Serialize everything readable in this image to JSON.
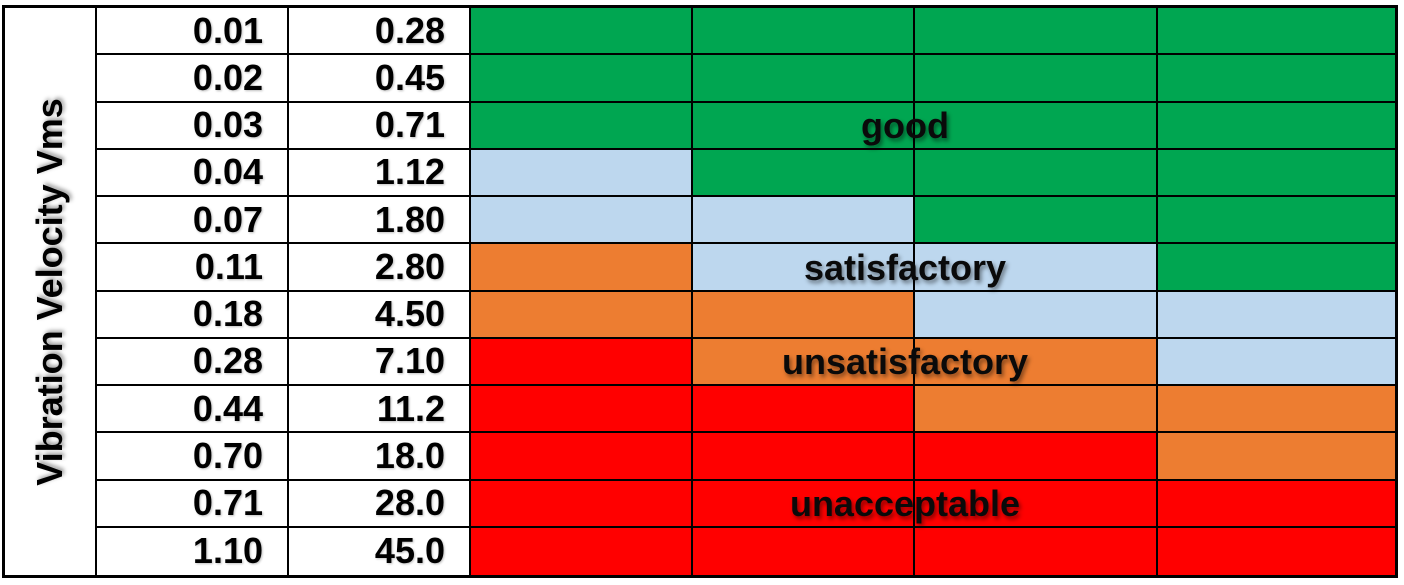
{
  "axis": {
    "label": "Vibration Velocity Vms"
  },
  "colors": {
    "good": "#00A651",
    "satisfactory": "#BDD7EE",
    "unsatisfactory": "#ED7D31",
    "unacceptable": "#FF0000",
    "border": "#000000",
    "background": "#FFFFFF"
  },
  "chart_data": {
    "type": "heatmap",
    "title": "",
    "ylabel": "Vibration Velocity Vms",
    "value_column_count": 2,
    "zone_column_count": 4,
    "zone_categories": [
      "good",
      "satisfactory",
      "unsatisfactory",
      "unacceptable"
    ],
    "rows": [
      {
        "values": [
          "0.01",
          "0.28"
        ],
        "zones": [
          "good",
          "good",
          "good",
          "good"
        ]
      },
      {
        "values": [
          "0.02",
          "0.45"
        ],
        "zones": [
          "good",
          "good",
          "good",
          "good"
        ]
      },
      {
        "values": [
          "0.03",
          "0.71"
        ],
        "zones": [
          "good",
          "good",
          "good",
          "good"
        ]
      },
      {
        "values": [
          "0.04",
          "1.12"
        ],
        "zones": [
          "satisfactory",
          "good",
          "good",
          "good"
        ]
      },
      {
        "values": [
          "0.07",
          "1.80"
        ],
        "zones": [
          "satisfactory",
          "satisfactory",
          "good",
          "good"
        ]
      },
      {
        "values": [
          "0.11",
          "2.80"
        ],
        "zones": [
          "unsatisfactory",
          "satisfactory",
          "satisfactory",
          "good"
        ]
      },
      {
        "values": [
          "0.18",
          "4.50"
        ],
        "zones": [
          "unsatisfactory",
          "unsatisfactory",
          "satisfactory",
          "satisfactory"
        ]
      },
      {
        "values": [
          "0.28",
          "7.10"
        ],
        "zones": [
          "unacceptable",
          "unsatisfactory",
          "unsatisfactory",
          "satisfactory"
        ]
      },
      {
        "values": [
          "0.44",
          "11.2"
        ],
        "zones": [
          "unacceptable",
          "unacceptable",
          "unsatisfactory",
          "unsatisfactory"
        ]
      },
      {
        "values": [
          "0.70",
          "18.0"
        ],
        "zones": [
          "unacceptable",
          "unacceptable",
          "unacceptable",
          "unsatisfactory"
        ]
      },
      {
        "values": [
          "0.71",
          "28.0"
        ],
        "zones": [
          "unacceptable",
          "unacceptable",
          "unacceptable",
          "unacceptable"
        ]
      },
      {
        "values": [
          "1.10",
          "45.0"
        ],
        "zones": [
          "unacceptable",
          "unacceptable",
          "unacceptable",
          "unacceptable"
        ]
      }
    ],
    "annotations": [
      {
        "text": "good",
        "row": 3
      },
      {
        "text": "satisfactory",
        "row": 6
      },
      {
        "text": "unsatisfactory",
        "row": 8
      },
      {
        "text": "unacceptable",
        "row": 11
      }
    ],
    "legend_position": "none",
    "grid": true
  }
}
